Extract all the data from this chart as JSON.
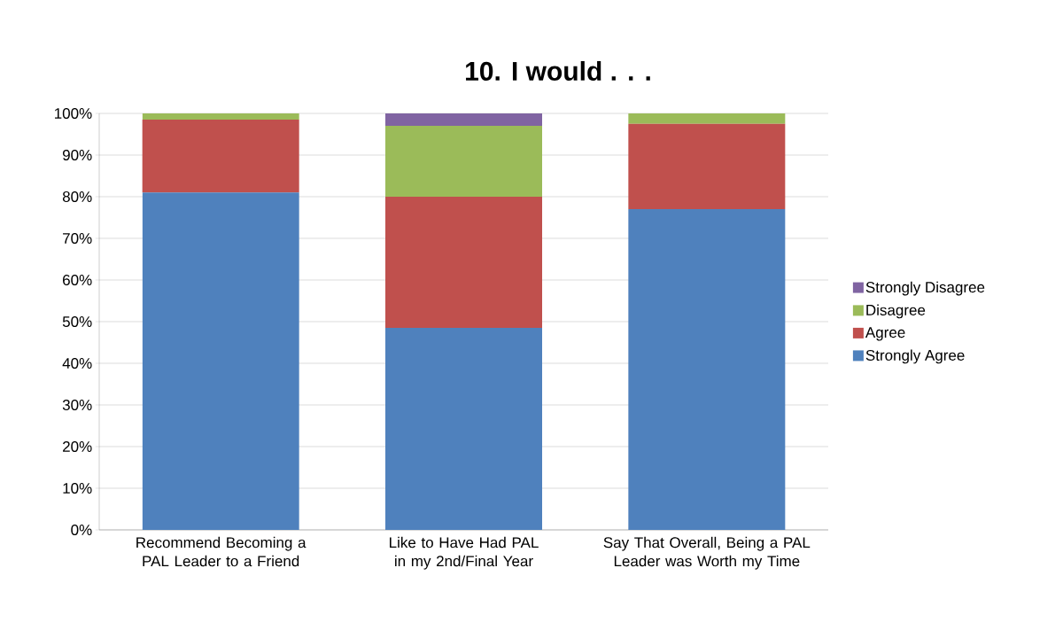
{
  "chart_data": {
    "type": "bar",
    "title": "10. I would . . .",
    "categories": [
      "Recommend Becoming a PAL Leader to a Friend",
      "Like to Have Had PAL in my 2nd/Final Year",
      "Say That Overall, Being a PAL Leader was Worth my Time"
    ],
    "series": [
      {
        "name": "Strongly Agree",
        "color": "#4f81bd",
        "values": [
          81,
          48.5,
          77
        ]
      },
      {
        "name": "Agree",
        "color": "#c0504d",
        "values": [
          17.5,
          31.5,
          20.5
        ]
      },
      {
        "name": "Disagree",
        "color": "#9bbb59",
        "values": [
          1.5,
          17,
          2.5
        ]
      },
      {
        "name": "Strongly Disagree",
        "color": "#8064a2",
        "values": [
          0,
          3,
          0
        ]
      }
    ],
    "stacked": true,
    "ylim": [
      0,
      100
    ],
    "yticks": [
      {
        "value": 0,
        "label": "0%"
      },
      {
        "value": 10,
        "label": "10%"
      },
      {
        "value": 20,
        "label": "20%"
      },
      {
        "value": 30,
        "label": "30%"
      },
      {
        "value": 40,
        "label": "40%"
      },
      {
        "value": 50,
        "label": "50%"
      },
      {
        "value": 60,
        "label": "60%"
      },
      {
        "value": 70,
        "label": "70%"
      },
      {
        "value": 80,
        "label": "80%"
      },
      {
        "value": 90,
        "label": "90%"
      },
      {
        "value": 100,
        "label": "100%"
      }
    ],
    "grid": "y",
    "legend": "right"
  }
}
